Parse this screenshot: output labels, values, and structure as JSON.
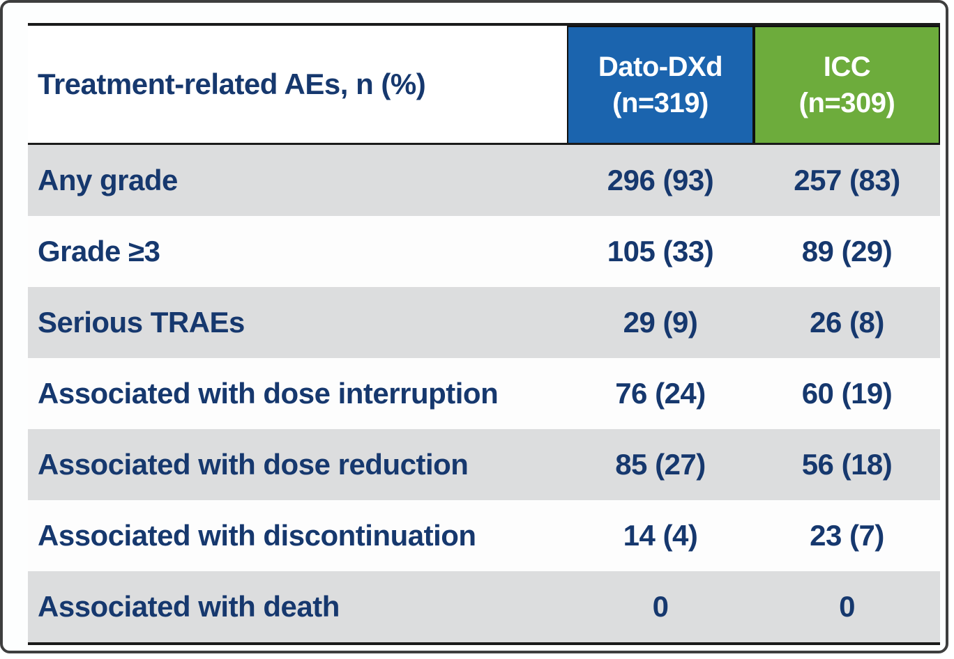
{
  "table": {
    "header": {
      "label": "Treatment-related AEs, n (%)",
      "dato_line1": "Dato-DXd",
      "dato_line2": "(n=319)",
      "icc_line1": "ICC",
      "icc_line2": "(n=309)"
    },
    "rows": [
      {
        "label": "Any grade",
        "dato": "296 (93)",
        "icc": "257 (83)"
      },
      {
        "label": "Grade ≥3",
        "dato": "105 (33)",
        "icc": "89 (29)"
      },
      {
        "label": "Serious TRAEs",
        "dato": "29 (9)",
        "icc": "26 (8)"
      },
      {
        "label": "Associated with dose interruption",
        "dato": "76 (24)",
        "icc": "60 (19)"
      },
      {
        "label": "Associated with dose reduction",
        "dato": "85 (27)",
        "icc": "56 (18)"
      },
      {
        "label": "Associated with discontinuation",
        "dato": "14 (4)",
        "icc": "23 (7)"
      },
      {
        "label": "Associated with death",
        "dato": "0",
        "icc": "0"
      }
    ]
  },
  "colors": {
    "dato_header_bg": "#1b64ae",
    "icc_header_bg": "#6dac3c",
    "text_navy": "#16386e",
    "row_gray": "#dcddde",
    "table_rule": "#1a1a1a",
    "frame_border": "#3e3e3e"
  }
}
